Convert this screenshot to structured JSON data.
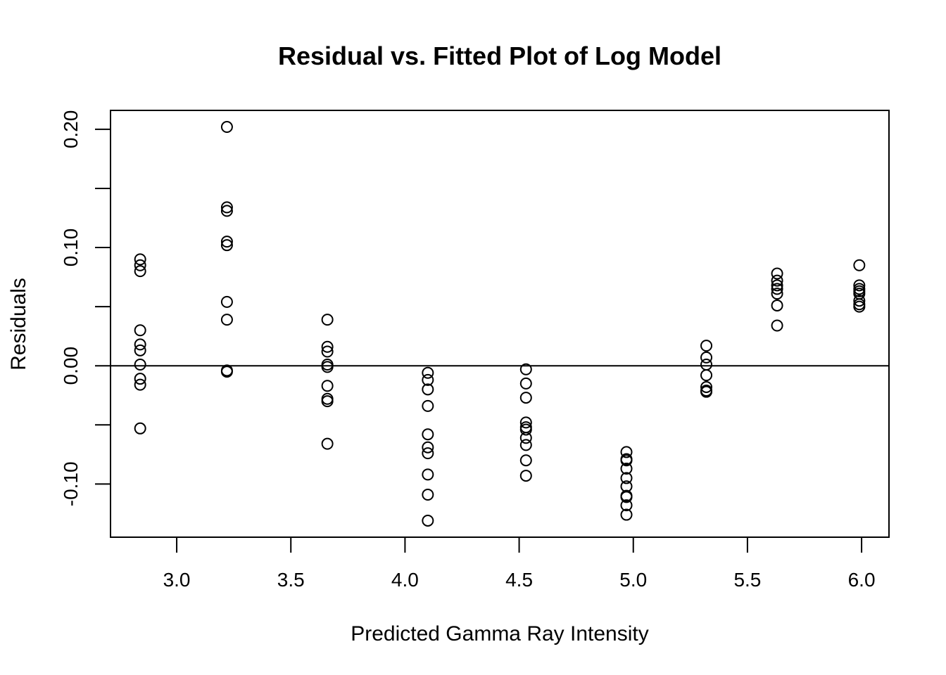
{
  "chart_data": {
    "type": "scatter",
    "title": "Residual vs. Fitted Plot of Log Model",
    "xlabel": "Predicted Gamma Ray Intensity",
    "ylabel": "Residuals",
    "xlim": [
      2.71,
      6.12
    ],
    "ylim": [
      -0.145,
      0.216
    ],
    "x_ticks": [
      {
        "value": 3.0,
        "label": "3.0"
      },
      {
        "value": 3.5,
        "label": "3.5"
      },
      {
        "value": 4.0,
        "label": "4.0"
      },
      {
        "value": 4.5,
        "label": "4.5"
      },
      {
        "value": 5.0,
        "label": "5.0"
      },
      {
        "value": 5.5,
        "label": "5.5"
      },
      {
        "value": 6.0,
        "label": "6.0"
      }
    ],
    "y_ticks": [
      {
        "value": -0.1,
        "label": "-0.10"
      },
      {
        "value": -0.05,
        "label": ""
      },
      {
        "value": 0.0,
        "label": "0.00"
      },
      {
        "value": 0.05,
        "label": ""
      },
      {
        "value": 0.1,
        "label": "0.10"
      },
      {
        "value": 0.15,
        "label": ""
      },
      {
        "value": 0.2,
        "label": "0.20"
      }
    ],
    "reference_line_y": 0,
    "grid": false,
    "marker": "open-circle",
    "points": [
      {
        "x": 2.84,
        "y": 0.09
      },
      {
        "x": 2.84,
        "y": 0.085
      },
      {
        "x": 2.84,
        "y": 0.08
      },
      {
        "x": 2.84,
        "y": 0.03
      },
      {
        "x": 2.84,
        "y": 0.018
      },
      {
        "x": 2.84,
        "y": 0.013
      },
      {
        "x": 2.84,
        "y": 0.001
      },
      {
        "x": 2.84,
        "y": -0.011
      },
      {
        "x": 2.84,
        "y": -0.016
      },
      {
        "x": 2.84,
        "y": -0.053
      },
      {
        "x": 3.22,
        "y": 0.202
      },
      {
        "x": 3.22,
        "y": 0.134
      },
      {
        "x": 3.22,
        "y": 0.131
      },
      {
        "x": 3.22,
        "y": 0.105
      },
      {
        "x": 3.22,
        "y": 0.102
      },
      {
        "x": 3.22,
        "y": 0.054
      },
      {
        "x": 3.22,
        "y": 0.039
      },
      {
        "x": 3.22,
        "y": -0.004
      },
      {
        "x": 3.22,
        "y": -0.005
      },
      {
        "x": 3.66,
        "y": 0.039
      },
      {
        "x": 3.66,
        "y": 0.016
      },
      {
        "x": 3.66,
        "y": 0.012
      },
      {
        "x": 3.66,
        "y": 0.001
      },
      {
        "x": 3.66,
        "y": -0.001
      },
      {
        "x": 3.66,
        "y": -0.017
      },
      {
        "x": 3.66,
        "y": -0.028
      },
      {
        "x": 3.66,
        "y": -0.03
      },
      {
        "x": 3.66,
        "y": -0.066
      },
      {
        "x": 4.1,
        "y": -0.006
      },
      {
        "x": 4.1,
        "y": -0.012
      },
      {
        "x": 4.1,
        "y": -0.02
      },
      {
        "x": 4.1,
        "y": -0.034
      },
      {
        "x": 4.1,
        "y": -0.058
      },
      {
        "x": 4.1,
        "y": -0.069
      },
      {
        "x": 4.1,
        "y": -0.074
      },
      {
        "x": 4.1,
        "y": -0.092
      },
      {
        "x": 4.1,
        "y": -0.109
      },
      {
        "x": 4.1,
        "y": -0.131
      },
      {
        "x": 4.53,
        "y": -0.003
      },
      {
        "x": 4.53,
        "y": -0.015
      },
      {
        "x": 4.53,
        "y": -0.027
      },
      {
        "x": 4.53,
        "y": -0.048
      },
      {
        "x": 4.53,
        "y": -0.052
      },
      {
        "x": 4.53,
        "y": -0.054
      },
      {
        "x": 4.53,
        "y": -0.061
      },
      {
        "x": 4.53,
        "y": -0.067
      },
      {
        "x": 4.53,
        "y": -0.08
      },
      {
        "x": 4.53,
        "y": -0.093
      },
      {
        "x": 4.97,
        "y": -0.073
      },
      {
        "x": 4.97,
        "y": -0.079
      },
      {
        "x": 4.97,
        "y": -0.08
      },
      {
        "x": 4.97,
        "y": -0.087
      },
      {
        "x": 4.97,
        "y": -0.095
      },
      {
        "x": 4.97,
        "y": -0.102
      },
      {
        "x": 4.97,
        "y": -0.11
      },
      {
        "x": 4.97,
        "y": -0.111
      },
      {
        "x": 4.97,
        "y": -0.118
      },
      {
        "x": 4.97,
        "y": -0.126
      },
      {
        "x": 5.32,
        "y": 0.017
      },
      {
        "x": 5.32,
        "y": 0.007
      },
      {
        "x": 5.32,
        "y": 0.001
      },
      {
        "x": 5.32,
        "y": -0.008
      },
      {
        "x": 5.32,
        "y": -0.018
      },
      {
        "x": 5.32,
        "y": -0.021
      },
      {
        "x": 5.32,
        "y": -0.022
      },
      {
        "x": 5.63,
        "y": 0.078
      },
      {
        "x": 5.63,
        "y": 0.072
      },
      {
        "x": 5.63,
        "y": 0.068
      },
      {
        "x": 5.63,
        "y": 0.065
      },
      {
        "x": 5.63,
        "y": 0.061
      },
      {
        "x": 5.63,
        "y": 0.051
      },
      {
        "x": 5.63,
        "y": 0.034
      },
      {
        "x": 5.99,
        "y": 0.085
      },
      {
        "x": 5.99,
        "y": 0.068
      },
      {
        "x": 5.99,
        "y": 0.065
      },
      {
        "x": 5.99,
        "y": 0.063
      },
      {
        "x": 5.99,
        "y": 0.061
      },
      {
        "x": 5.99,
        "y": 0.055
      },
      {
        "x": 5.99,
        "y": 0.052
      },
      {
        "x": 5.99,
        "y": 0.05
      }
    ]
  }
}
